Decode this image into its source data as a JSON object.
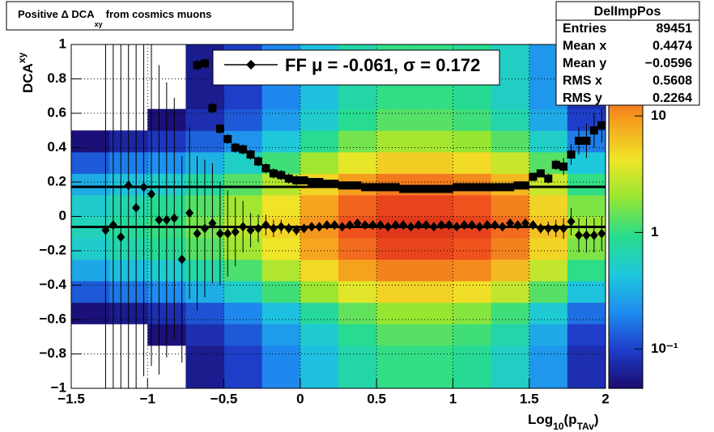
{
  "chart_data": {
    "type": "heatmap",
    "title": [
      "Positive Δ DCA",
      "xy",
      "from cosmics muons"
    ],
    "x_label": [
      "Log",
      "10",
      "(p",
      "TAv",
      ")"
    ],
    "y_label": [
      "DCA",
      "xy"
    ],
    "xlim": [
      -1.5,
      2
    ],
    "ylim": [
      -1,
      1
    ],
    "xticks": [
      {
        "value": -1.5,
        "label": "−1.5"
      },
      {
        "value": -1,
        "label": "−1"
      },
      {
        "value": -0.5,
        "label": "−0.5"
      },
      0,
      0.5,
      1,
      1.5,
      2
    ],
    "yticks": [
      {
        "value": -1,
        "label": "−1"
      },
      {
        "value": -0.8,
        "label": "−0.8"
      },
      {
        "value": -0.6,
        "label": "−0.6"
      },
      {
        "value": -0.4,
        "label": "−0.4"
      },
      {
        "value": -0.2,
        "label": "−0.2"
      },
      0,
      0.2,
      0.4,
      0.6,
      0.8,
      1
    ],
    "grid": true,
    "zlim": [
      0.046,
      41
    ],
    "zlog": true,
    "zticks": [
      {
        "value": 0.1,
        "label": "10⁻¹"
      },
      1,
      10
    ],
    "colormap": [
      "#1a0a6e",
      "#1e3cc8",
      "#1e8cf0",
      "#1ec8dc",
      "#28dc8c",
      "#96e632",
      "#f0e628",
      "#f5a01e",
      "#f0501e",
      "#c81414"
    ],
    "xbins": [
      -1.5,
      -1.25,
      -1,
      -0.75,
      -0.5,
      -0.25,
      0,
      0.25,
      0.5,
      0.75,
      1,
      1.25,
      1.5,
      1.75,
      2
    ],
    "ybins": [
      -1,
      -0.875,
      -0.75,
      -0.625,
      -0.5,
      -0.375,
      -0.25,
      -0.125,
      0,
      0.125,
      0.25,
      0.375,
      0.5,
      0.625,
      0.75,
      0.875,
      1
    ],
    "z": [
      [
        0.02,
        0.02,
        0.03,
        0.05,
        0.13,
        0.29,
        0.52,
        0.62,
        0.52,
        0.31,
        0.13,
        0.05,
        0.03,
        0.02,
        0.02,
        0.02
      ],
      [
        0.03,
        0.03,
        0.04,
        0.06,
        0.17,
        0.39,
        0.69,
        0.83,
        0.7,
        0.41,
        0.18,
        0.07,
        0.04,
        0.03,
        0.03,
        0.03
      ],
      [
        0.04,
        0.04,
        0.05,
        0.08,
        0.21,
        0.49,
        0.86,
        1.04,
        0.87,
        0.51,
        0.22,
        0.09,
        0.05,
        0.04,
        0.04,
        0.04
      ],
      [
        0.06,
        0.06,
        0.08,
        0.12,
        0.32,
        0.74,
        1.3,
        1.6,
        1.3,
        0.77,
        0.33,
        0.14,
        0.08,
        0.06,
        0.06,
        0.06
      ],
      [
        0.1,
        0.1,
        0.13,
        0.2,
        0.53,
        1.2,
        2.2,
        2.6,
        2.2,
        1.3,
        0.55,
        0.23,
        0.13,
        0.1,
        0.1,
        0.1
      ],
      [
        0.2,
        0.2,
        0.25,
        0.4,
        1.1,
        2.5,
        4.3,
        5.2,
        4.4,
        2.6,
        1.1,
        0.45,
        0.25,
        0.2,
        0.2,
        0.2
      ],
      [
        0.4,
        0.4,
        0.5,
        0.8,
        2.1,
        4.9,
        8.6,
        10,
        8.7,
        5.1,
        2.2,
        0.9,
        0.5,
        0.4,
        0.4,
        0.4
      ],
      [
        0.72,
        0.72,
        0.9,
        1.4,
        3.8,
        8.8,
        15,
        19,
        16,
        9.2,
        4,
        1.6,
        0.9,
        0.72,
        0.72,
        0.72
      ],
      [
        1,
        1,
        1.3,
        2,
        5.3,
        12,
        22,
        26,
        22,
        13,
        5.5,
        2.3,
        1.3,
        1,
        1,
        1
      ],
      [
        1,
        1,
        1.3,
        2,
        5.3,
        12,
        22,
        26,
        22,
        13,
        5.5,
        2.3,
        1.3,
        1,
        1,
        1
      ],
      [
        0.88,
        0.88,
        1.1,
        1.8,
        4.6,
        11,
        19,
        23,
        19,
        11,
        4.8,
        2,
        1.1,
        0.88,
        0.88,
        0.88
      ],
      [
        0.56,
        0.56,
        0.7,
        1.1,
        2.9,
        6.9,
        12,
        15,
        12,
        7.1,
        3.1,
        1.3,
        0.7,
        0.56,
        0.56,
        0.56
      ],
      [
        0.24,
        0.24,
        0.3,
        0.48,
        1.3,
        2.9,
        5.2,
        6.2,
        5.2,
        3.1,
        1.3,
        0.54,
        0.3,
        0.24,
        0.24,
        0.24
      ],
      [
        0.08,
        0.08,
        0.1,
        0.16,
        0.42,
        0.98,
        1.7,
        2.1,
        1.7,
        1,
        0.44,
        0.18,
        0.1,
        0.08,
        0.08,
        0.08
      ]
    ],
    "x": [
      -1.275,
      -1.225,
      -1.175,
      -1.125,
      -1.075,
      -1.025,
      -0.975,
      -0.925,
      -0.875,
      -0.825,
      -0.775,
      -0.725,
      -0.675,
      -0.625,
      -0.575,
      -0.525,
      -0.475,
      -0.425,
      -0.375,
      -0.325,
      -0.275,
      -0.225,
      -0.175,
      -0.125,
      -0.075,
      -0.025,
      0.025,
      0.075,
      0.125,
      0.175,
      0.225,
      0.275,
      0.325,
      0.375,
      0.425,
      0.475,
      0.525,
      0.575,
      0.625,
      0.675,
      0.725,
      0.775,
      0.825,
      0.875,
      0.925,
      0.975,
      1.025,
      1.075,
      1.125,
      1.175,
      1.225,
      1.275,
      1.325,
      1.375,
      1.425,
      1.475,
      1.525,
      1.575,
      1.625,
      1.675,
      1.725,
      1.775,
      1.825,
      1.875,
      1.925,
      1.975
    ],
    "profile_mean": {
      "marker": "diamond",
      "color": "#000000",
      "values": [
        -0.08,
        -0.05,
        -0.12,
        0.18,
        0.05,
        0.17,
        0.13,
        -0.02,
        -0.02,
        -0.01,
        -0.25,
        0.02,
        -0.1,
        -0.07,
        -0.04,
        -0.1,
        -0.1,
        -0.09,
        -0.06,
        -0.08,
        -0.07,
        -0.05,
        -0.07,
        -0.06,
        -0.07,
        -0.08,
        -0.07,
        -0.06,
        -0.06,
        -0.05,
        -0.05,
        -0.06,
        -0.05,
        -0.04,
        -0.05,
        -0.05,
        -0.05,
        -0.06,
        -0.05,
        -0.05,
        -0.06,
        -0.05,
        -0.05,
        -0.06,
        -0.05,
        -0.05,
        -0.06,
        -0.05,
        -0.05,
        -0.06,
        -0.05,
        -0.05,
        -0.06,
        -0.04,
        -0.05,
        -0.04,
        -0.05,
        -0.07,
        -0.07,
        -0.07,
        -0.07,
        -0.03,
        -0.11,
        -0.11,
        -0.11,
        -0.1
      ],
      "errors": [
        1.2,
        1.2,
        1.2,
        1.2,
        1.2,
        1.1,
        1.0,
        0.9,
        0.8,
        0.7,
        0.6,
        0.5,
        0.45,
        0.4,
        0.35,
        0.3,
        0.25,
        0.2,
        0.15,
        0.1,
        0.08,
        0.06,
        0.05,
        0.04,
        0.03,
        0.03,
        0.01,
        0.01,
        0.01,
        0.01,
        0.01,
        0.01,
        0.01,
        0.01,
        0.01,
        0.01,
        0.01,
        0.01,
        0.01,
        0.01,
        0.01,
        0.01,
        0.01,
        0.01,
        0.01,
        0.01,
        0.01,
        0.01,
        0.01,
        0.01,
        0.01,
        0.01,
        0.01,
        0.01,
        0.01,
        0.01,
        0.02,
        0.03,
        0.04,
        0.05,
        0.06,
        0.08,
        0.1,
        0.1,
        0.1,
        0.1
      ]
    },
    "profile_rms": {
      "marker": "square",
      "color": "#000000",
      "values": [
        null,
        null,
        null,
        null,
        null,
        null,
        null,
        null,
        null,
        null,
        null,
        null,
        0.88,
        0.89,
        0.63,
        0.51,
        0.45,
        0.4,
        0.39,
        0.36,
        0.32,
        0.28,
        0.25,
        0.24,
        0.22,
        0.21,
        0.21,
        0.2,
        0.2,
        0.19,
        0.19,
        0.18,
        0.18,
        0.18,
        0.17,
        0.17,
        0.17,
        0.17,
        0.17,
        0.16,
        0.16,
        0.16,
        0.16,
        0.16,
        0.16,
        0.16,
        0.17,
        0.17,
        0.17,
        0.17,
        0.17,
        0.17,
        0.17,
        0.17,
        0.18,
        0.18,
        0.23,
        0.25,
        0.22,
        0.3,
        0.29,
        0.36,
        0.44,
        0.44,
        0.5,
        0.53
      ],
      "errors": [
        null,
        null,
        null,
        null,
        null,
        null,
        null,
        null,
        null,
        null,
        null,
        null,
        0.03,
        0.03,
        0.03,
        0.03,
        0.03,
        0.03,
        0.03,
        0.03,
        0.03,
        0.03,
        0.03,
        0.03,
        0.03,
        0.03,
        0.01,
        0.01,
        0.01,
        0.01,
        0.01,
        0.01,
        0.01,
        0.01,
        0.01,
        0.01,
        0.01,
        0.01,
        0.01,
        0.01,
        0.01,
        0.01,
        0.01,
        0.01,
        0.01,
        0.01,
        0.01,
        0.01,
        0.01,
        0.01,
        0.01,
        0.01,
        0.01,
        0.01,
        0.01,
        0.01,
        0.02,
        0.02,
        0.03,
        0.03,
        0.05,
        0.06,
        0.08,
        0.1,
        0.1,
        0.1
      ]
    },
    "fit": {
      "label": "FF μ = -0.061, σ =   0.172",
      "mu": -0.061,
      "sigma": 0.172
    },
    "stats": {
      "title": "DelImpPos",
      "rows": [
        [
          "Entries",
          "89451"
        ],
        [
          "Mean x",
          "0.4474"
        ],
        [
          "Mean y",
          "−0.0596"
        ],
        [
          "RMS x",
          "0.5608"
        ],
        [
          "RMS y",
          "0.2264"
        ]
      ]
    }
  }
}
